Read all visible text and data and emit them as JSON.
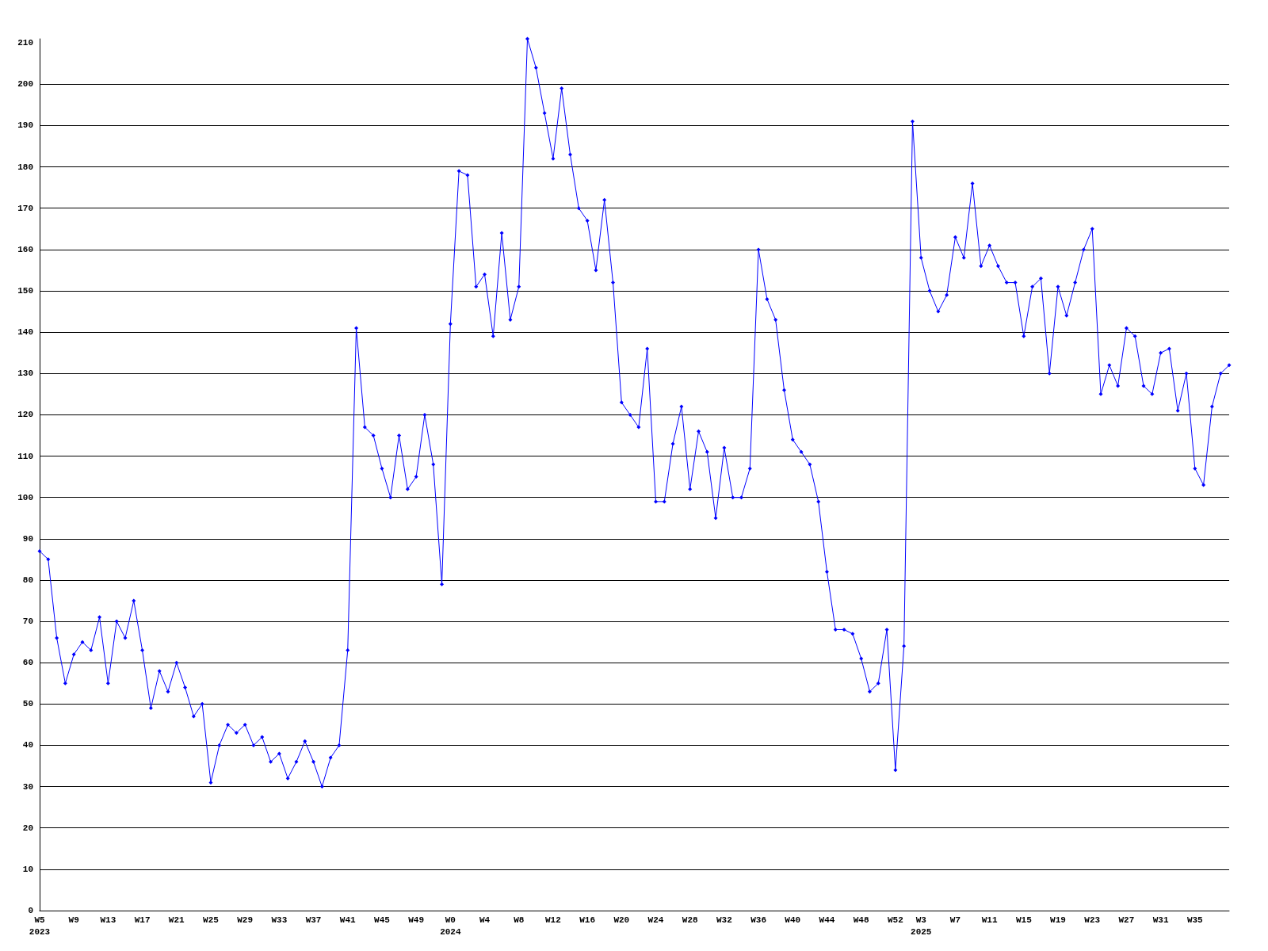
{
  "chart_data": {
    "type": "line",
    "categories": [
      "W5\n2023",
      null,
      null,
      null,
      "W9",
      null,
      null,
      null,
      "W13",
      null,
      null,
      null,
      "W17",
      null,
      null,
      null,
      "W21",
      null,
      null,
      null,
      "W25",
      null,
      null,
      null,
      "W29",
      null,
      null,
      null,
      "W33",
      null,
      null,
      null,
      "W37",
      null,
      null,
      null,
      "W41",
      null,
      null,
      null,
      "W45",
      null,
      null,
      null,
      "W49",
      null,
      null,
      null,
      "W0\n2024",
      null,
      null,
      null,
      "W4",
      null,
      null,
      null,
      "W8",
      null,
      null,
      null,
      "W12",
      null,
      null,
      null,
      "W16",
      null,
      null,
      null,
      "W20",
      null,
      null,
      null,
      "W24",
      null,
      null,
      null,
      "W28",
      null,
      null,
      null,
      "W32",
      null,
      null,
      null,
      "W36",
      null,
      null,
      null,
      "W40",
      null,
      null,
      null,
      "W44",
      null,
      null,
      null,
      "W48",
      null,
      null,
      null,
      "W52",
      null,
      null,
      "W3\n2025",
      null,
      null,
      null,
      "W7",
      null,
      null,
      null,
      "W11",
      null,
      null,
      null,
      "W15",
      null,
      null,
      null,
      "W19",
      null,
      null,
      null,
      "W23",
      null,
      null,
      null,
      "W27",
      null,
      null,
      null,
      "W31",
      null,
      null,
      null,
      "W35",
      null,
      null,
      null,
      null
    ],
    "series": [
      {
        "color": "#0000ff",
        "values": [
          87,
          85,
          66,
          55,
          62,
          65,
          63,
          71,
          55,
          70,
          66,
          75,
          63,
          49,
          58,
          53,
          60,
          54,
          47,
          50,
          31,
          40,
          45,
          43,
          45,
          40,
          42,
          36,
          38,
          32,
          36,
          41,
          36,
          30,
          37,
          40,
          63,
          141,
          117,
          115,
          107,
          100,
          115,
          102,
          105,
          120,
          108,
          79,
          142,
          179,
          178,
          151,
          154,
          139,
          164,
          143,
          151,
          211,
          204,
          193,
          182,
          199,
          183,
          170,
          167,
          155,
          172,
          152,
          123,
          120,
          117,
          136,
          99,
          99,
          113,
          122,
          102,
          116,
          111,
          95,
          112,
          100,
          100,
          107,
          160,
          148,
          143,
          126,
          114,
          111,
          108,
          99,
          82,
          68,
          68,
          67,
          61,
          53,
          55,
          68,
          34,
          64,
          191,
          158,
          150,
          145,
          149,
          163,
          158,
          176,
          156,
          161,
          156,
          152,
          152,
          139,
          151,
          153,
          130,
          151,
          144,
          152,
          160,
          165,
          125,
          132,
          127,
          141,
          139,
          127,
          125,
          135,
          136,
          121,
          130,
          107,
          103,
          122,
          130,
          132
        ]
      }
    ],
    "ylim": [
      0,
      211
    ],
    "yticks": [
      0,
      10,
      20,
      30,
      40,
      50,
      60,
      70,
      80,
      90,
      100,
      110,
      120,
      130,
      140,
      150,
      160,
      170,
      180,
      190,
      200,
      210
    ],
    "grid": "y",
    "marker": "diamond",
    "line_style": "solid"
  }
}
